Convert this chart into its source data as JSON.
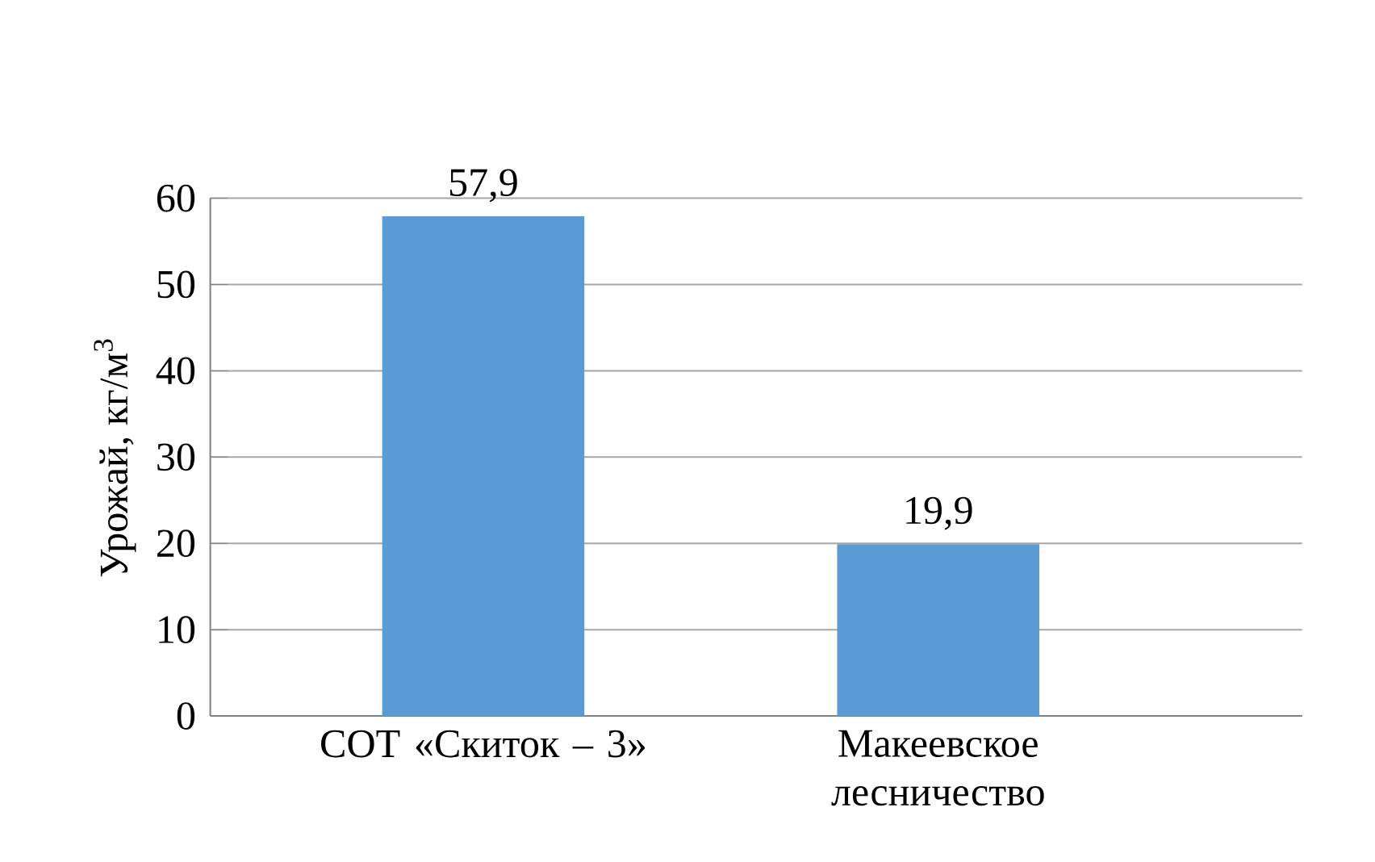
{
  "chart_data": {
    "type": "bar",
    "ylabel": "Урожай, кг/м$^{3}$",
    "categories": [
      "СОТ «Скиток – 3»",
      "Макеевское лесничество"
    ],
    "values": [
      57.9,
      19.9
    ],
    "color": "#5b9bd5",
    "ylim": [
      0,
      60
    ],
    "yticks": [
      0,
      10,
      20,
      30,
      40,
      50,
      60
    ],
    "grid": "y",
    "value_labels": [
      "57,9",
      "19,9"
    ]
  }
}
